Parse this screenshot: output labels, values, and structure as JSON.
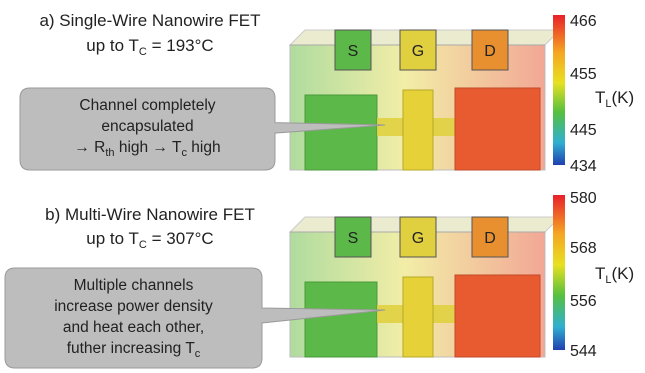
{
  "panels": [
    {
      "title_line1": "a) Single-Wire Nanowire FET",
      "title_line2": {
        "text": "up to T",
        "sub": "C",
        "rest": " = 193°C"
      },
      "callout": {
        "lines": [
          "Channel completely",
          "encapsulated"
        ],
        "last": {
          "text": "→ R",
          "sub": "th",
          "rest": " high → T",
          "sub2": "c",
          "rest2": " high"
        }
      },
      "blocks": [
        "S",
        "G",
        "D"
      ],
      "colorbar": {
        "ticks": [
          "466",
          "455",
          "445",
          "434"
        ],
        "label": {
          "text": "T",
          "sub": "L",
          "rest": "(K)"
        }
      }
    },
    {
      "title_line1": "b) Multi-Wire Nanowire FET",
      "title_line2": {
        "text": "up to T",
        "sub": "C",
        "rest": " = 307°C"
      },
      "callout": {
        "lines": [
          "Multiple channels",
          "increase power density",
          "and heat each other,"
        ],
        "last": {
          "text": "futher increasing T",
          "sub": "c"
        }
      },
      "blocks": [
        "S",
        "G",
        "D"
      ],
      "colorbar": {
        "ticks": [
          "580",
          "568",
          "556",
          "544"
        ],
        "label": {
          "text": "T",
          "sub": "L",
          "rest": "(K)"
        }
      }
    }
  ]
}
